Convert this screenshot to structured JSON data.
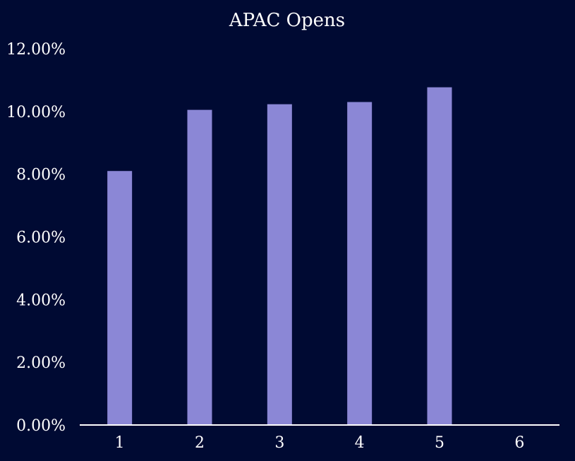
{
  "chart_data": {
    "type": "bar",
    "title": "APAC Opens",
    "xlabel": "",
    "ylabel": "",
    "categories": [
      "1",
      "2",
      "3",
      "4",
      "5",
      "6"
    ],
    "values": [
      0.081,
      0.1005,
      0.1023,
      0.103,
      0.1077,
      0
    ],
    "ylim": [
      0,
      0.12
    ],
    "yticks": [
      "0.00%",
      "2.00%",
      "4.00%",
      "6.00%",
      "8.00%",
      "10.00%",
      "12.00%"
    ],
    "grid": false,
    "legend": "none",
    "colors": {
      "background": "#000a33",
      "bar": "#8b87d6",
      "axis": "#ffffff",
      "text": "#ffffff"
    }
  }
}
